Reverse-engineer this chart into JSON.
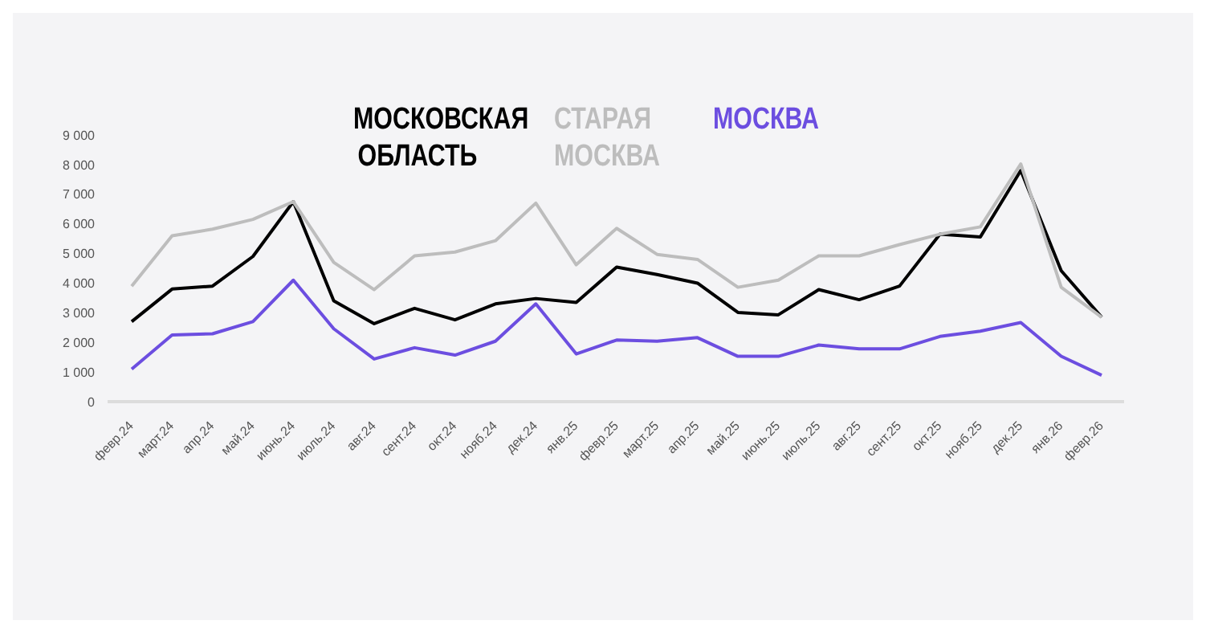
{
  "chart_data": {
    "type": "line",
    "categories": [
      "февр.24",
      "март.24",
      "апр.24",
      "май.24",
      "июнь.24",
      "июль.24",
      "авг.24",
      "сент.24",
      "окт.24",
      "нояб.24",
      "дек.24",
      "янв.25",
      "февр.25",
      "март.25",
      "апр.25",
      "май.25",
      "июнь.25",
      "июль.25",
      "авг.25",
      "сент.25",
      "окт.25",
      "нояб.25",
      "дек.25",
      "янв.26",
      "февр.26"
    ],
    "series": [
      {
        "name": "МОСКОВСКАЯ ОБЛАСТЬ",
        "color": "#000000",
        "values": [
          2700,
          3800,
          3900,
          4900,
          6750,
          3400,
          2630,
          3150,
          2760,
          3300,
          3480,
          3350,
          4540,
          4290,
          4000,
          3010,
          2930,
          3780,
          3440,
          3900,
          5650,
          5560,
          7800,
          4420,
          2850
        ]
      },
      {
        "name": "СТАРАЯ МОСКВА",
        "color": "#bdbdbd",
        "values": [
          3900,
          5600,
          5820,
          6150,
          6750,
          4700,
          3780,
          4920,
          5050,
          5430,
          6700,
          4620,
          5850,
          4970,
          4800,
          3860,
          4100,
          4920,
          4920,
          5300,
          5650,
          5900,
          8020,
          3860,
          2850
        ]
      },
      {
        "name": "МОСКВА",
        "color": "#6c4ee0",
        "values": [
          1100,
          2250,
          2290,
          2700,
          4100,
          2460,
          1440,
          1820,
          1570,
          2040,
          3300,
          1610,
          2080,
          2040,
          2160,
          1530,
          1530,
          1910,
          1780,
          1780,
          2200,
          2380,
          2670,
          1530,
          890
        ]
      }
    ],
    "ylim": [
      0,
      9000
    ],
    "yticks": [
      0,
      {
        "value": 1000,
        "label": "1 000"
      },
      {
        "value": 2000,
        "label": "2 000"
      },
      {
        "value": 3000,
        "label": "3 000"
      },
      {
        "value": 4000,
        "label": "4 000"
      },
      {
        "value": 5000,
        "label": "5 000"
      },
      {
        "value": 6000,
        "label": "6 000"
      },
      {
        "value": 7000,
        "label": "7 000"
      },
      {
        "value": 8000,
        "label": "8 000"
      },
      {
        "value": 9000,
        "label": "9 000"
      }
    ],
    "grid": false,
    "legend": "top",
    "marker": "none",
    "line_style": "solid"
  }
}
